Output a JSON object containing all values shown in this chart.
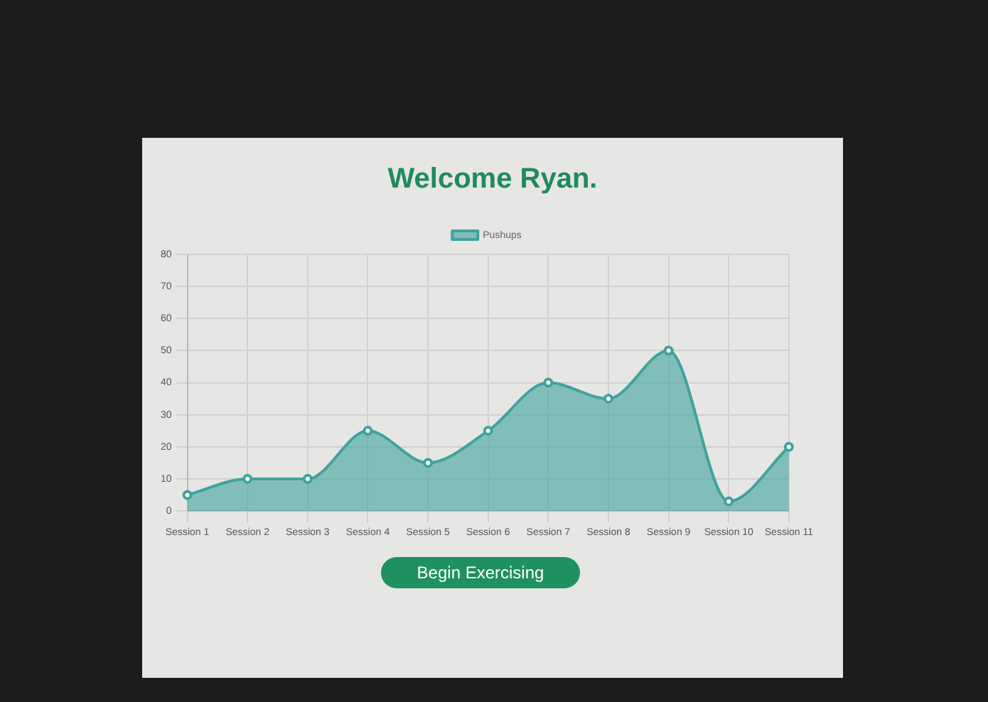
{
  "chart_data": {
    "type": "area",
    "title": "Welcome Ryan.",
    "categories": [
      "Session 1",
      "Session 2",
      "Session 3",
      "Session 4",
      "Session 5",
      "Session 6",
      "Session 7",
      "Session 8",
      "Session 9",
      "Session 10",
      "Session 11"
    ],
    "series": [
      {
        "name": "Pushups",
        "color": "#3fa39c",
        "values": [
          5,
          10,
          10,
          25,
          15,
          25,
          40,
          35,
          50,
          3,
          20
        ]
      }
    ],
    "ylim": [
      0,
      80
    ],
    "yticks": [
      0,
      10,
      20,
      30,
      40,
      50,
      60,
      70,
      80
    ],
    "grid": true,
    "legend": "top",
    "marker": "circle",
    "annotations": [
      "Begin Exercising"
    ]
  }
}
